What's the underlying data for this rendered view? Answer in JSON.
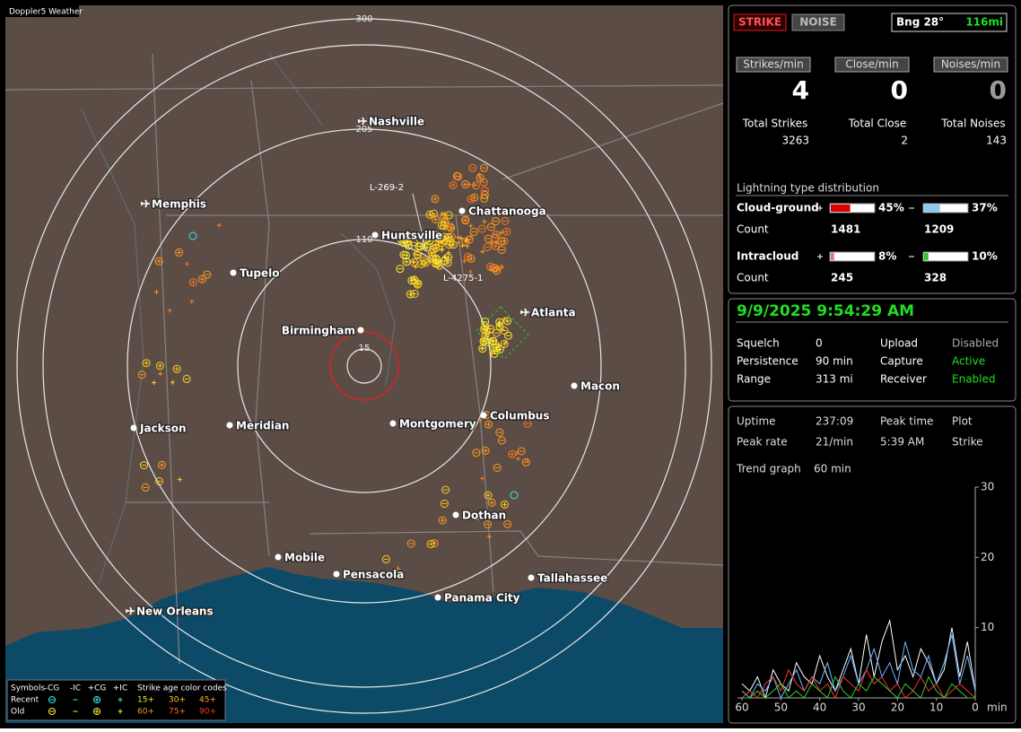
{
  "app_title": "Doppler5 Weather",
  "map": {
    "range_rings": [
      "300",
      "205",
      "110",
      "15"
    ],
    "cities": [
      "Nashville",
      "Memphis",
      "Chattanooga",
      "Huntsville",
      "Tupelo",
      "Birmingham",
      "Atlanta",
      "Macon",
      "Jackson",
      "Meridian",
      "Montgomery",
      "Columbus",
      "Dothan",
      "Mobile",
      "Pensacola",
      "Tallahassee",
      "Panama City",
      "New Orleans"
    ],
    "storm_labels": [
      "L-269-2",
      "L-4275-1"
    ],
    "legend": {
      "symbols_label": "Symbols",
      "columns": [
        "-CG",
        "-IC",
        "+CG",
        "+IC"
      ],
      "age_label": "Strike age color codes",
      "rows": [
        "Recent",
        "Old"
      ],
      "recent_ages": [
        "15+",
        "30+",
        "45+"
      ],
      "old_ages": [
        "60+",
        "75+",
        "90+"
      ]
    }
  },
  "controls": {
    "strike": "STRIKE",
    "noise": "NOISE",
    "bearing": "Bng 28°",
    "distance": "116mi"
  },
  "rates": [
    {
      "label": "Strikes/min",
      "value": "4"
    },
    {
      "label": "Close/min",
      "value": "0"
    },
    {
      "label": "Noises/min",
      "value": "0"
    }
  ],
  "totals": [
    {
      "label": "Total Strikes",
      "value": "3263"
    },
    {
      "label": "Total Close",
      "value": "2"
    },
    {
      "label": "Total Noises",
      "value": "143"
    }
  ],
  "distribution": {
    "title": "Lightning type distribution",
    "count_label": "Count",
    "rows": [
      {
        "label": "Cloud-ground",
        "plus": {
          "value": 45,
          "label": "45%"
        },
        "minus": {
          "value": 37,
          "label": "37%"
        },
        "counts": [
          "1481",
          "1209"
        ]
      },
      {
        "label": "Intracloud",
        "plus": {
          "value": 8,
          "label": "8%"
        },
        "minus": {
          "value": 10,
          "label": "10%"
        },
        "counts": [
          "245",
          "328"
        ]
      }
    ]
  },
  "status": {
    "datetime": "9/9/2025 9:54:29 AM",
    "rows": [
      [
        "Squelch",
        "0",
        "Upload",
        "Disabled"
      ],
      [
        "Persistence",
        "90 min",
        "Capture",
        "Active"
      ],
      [
        "Range",
        "313 mi",
        "Receiver",
        "Enabled"
      ]
    ]
  },
  "stats": {
    "rows": [
      [
        "Uptime",
        "237:09",
        "Peak time",
        "Plot"
      ],
      [
        "Peak rate",
        "21/min",
        "5:39 AM",
        "Strike"
      ]
    ],
    "trend_label": "Trend graph",
    "trend_window": "60 min"
  },
  "trend": {
    "ylim": [
      0,
      30
    ],
    "yticks": [
      10,
      20,
      30
    ],
    "xlim": [
      60,
      0
    ],
    "xticks": [
      60,
      50,
      40,
      30,
      20,
      10,
      0
    ],
    "x_unit": "min",
    "x": [
      60,
      58,
      56,
      54,
      52,
      50,
      48,
      46,
      44,
      42,
      40,
      38,
      36,
      34,
      32,
      30,
      28,
      26,
      24,
      22,
      20,
      18,
      16,
      14,
      12,
      10,
      8,
      6,
      4,
      2,
      0
    ],
    "series": [
      {
        "color": "#ffffff",
        "values": [
          2,
          1,
          3,
          0,
          4,
          2,
          1,
          5,
          3,
          2,
          6,
          3,
          1,
          4,
          7,
          2,
          9,
          3,
          8,
          11,
          4,
          6,
          3,
          7,
          5,
          2,
          4,
          10,
          3,
          8,
          1
        ]
      },
      {
        "color": "#6fb7ff",
        "values": [
          1,
          0,
          2,
          1,
          3,
          0,
          2,
          4,
          1,
          3,
          2,
          5,
          1,
          3,
          6,
          2,
          4,
          7,
          3,
          5,
          2,
          8,
          4,
          3,
          6,
          2,
          5,
          9,
          2,
          6,
          1
        ]
      },
      {
        "color": "#ff3030",
        "values": [
          0,
          1,
          0,
          2,
          3,
          1,
          4,
          2,
          1,
          3,
          1,
          2,
          0,
          3,
          2,
          1,
          4,
          2,
          3,
          1,
          2,
          0,
          1,
          3,
          1,
          2,
          0,
          1,
          2,
          1,
          0
        ]
      },
      {
        "color": "#30d030",
        "values": [
          0,
          0,
          1,
          0,
          1,
          2,
          0,
          1,
          0,
          2,
          1,
          0,
          3,
          1,
          0,
          2,
          1,
          3,
          2,
          1,
          0,
          2,
          1,
          0,
          3,
          1,
          0,
          2,
          1,
          0,
          0
        ]
      }
    ]
  }
}
